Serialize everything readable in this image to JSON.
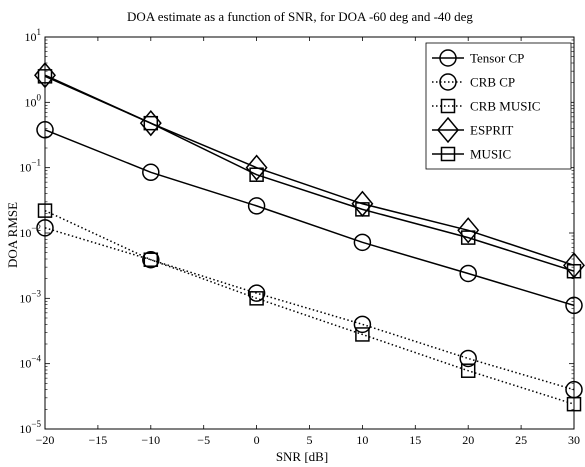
{
  "chart_data": {
    "type": "line",
    "title": "DOA estimate as a function of SNR, for DOA -60 deg and -40 deg",
    "xlabel": "SNR [dB]",
    "ylabel": "DOA RMSE",
    "xlim": [
      -20,
      30
    ],
    "ylim": [
      1e-05,
      10
    ],
    "y_scale": "log",
    "x_ticks": [
      -20,
      -15,
      -10,
      -5,
      0,
      5,
      10,
      15,
      20,
      25,
      30
    ],
    "x_tick_labels": [
      "−20",
      "−15",
      "−10",
      "−5",
      "0",
      "5",
      "10",
      "15",
      "20",
      "25",
      "30"
    ],
    "y_ticks": [
      {
        "value": 1e-05,
        "base": "10",
        "exp": "−5"
      },
      {
        "value": 0.0001,
        "base": "10",
        "exp": "−4"
      },
      {
        "value": 0.001,
        "base": "10",
        "exp": "−3"
      },
      {
        "value": 0.01,
        "base": "10",
        "exp": "−2"
      },
      {
        "value": 0.1,
        "base": "10",
        "exp": "−1"
      },
      {
        "value": 1,
        "base": "10",
        "exp": "0"
      },
      {
        "value": 10,
        "base": "10",
        "exp": "1"
      }
    ],
    "grid": false,
    "legend_position": "top-right",
    "x": [
      -20,
      -10,
      0,
      10,
      20,
      30
    ],
    "series": [
      {
        "name": "Tensor CP",
        "marker": "circle",
        "line": "solid",
        "values": [
          0.38,
          0.085,
          0.026,
          0.0072,
          0.0024,
          0.00078
        ]
      },
      {
        "name": "CRB CP",
        "marker": "circle",
        "line": "dotted",
        "values": [
          0.012,
          0.0039,
          0.0012,
          0.0004,
          0.00012,
          4e-05
        ]
      },
      {
        "name": "CRB MUSIC",
        "marker": "square",
        "line": "dotted",
        "values": [
          0.022,
          0.0039,
          0.001,
          0.00028,
          7.8e-05,
          2.4e-05
        ]
      },
      {
        "name": "ESPRIT",
        "marker": "diamond",
        "line": "solid",
        "values": [
          2.6,
          0.48,
          0.1,
          0.028,
          0.011,
          0.0032
        ]
      },
      {
        "name": "MUSIC",
        "marker": "square",
        "line": "solid",
        "values": [
          2.5,
          0.48,
          0.078,
          0.023,
          0.0085,
          0.0026
        ]
      }
    ]
  }
}
